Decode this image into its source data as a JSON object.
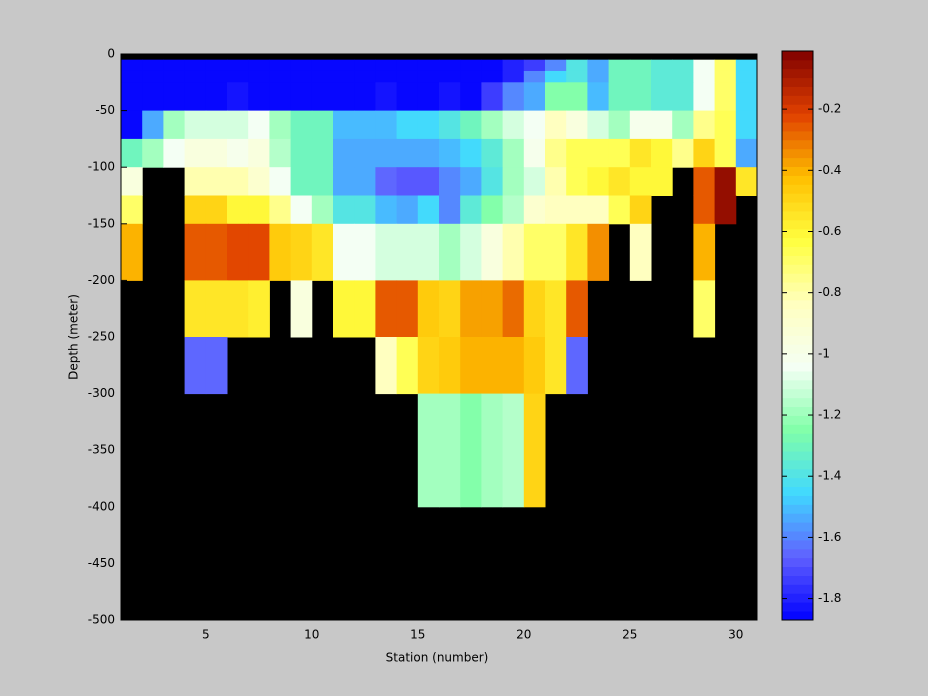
{
  "chart_data": {
    "type": "heatmap",
    "xlabel": "Station (number)",
    "ylabel": "Depth (meter)",
    "x_edges": [
      1,
      2,
      3,
      4,
      5,
      6,
      7,
      8,
      9,
      10,
      11,
      12,
      13,
      14,
      15,
      16,
      17,
      18,
      19,
      20,
      21,
      22,
      23,
      24,
      25,
      26,
      27,
      28,
      29,
      30,
      31
    ],
    "y_edges": [
      -5,
      -15,
      -25,
      -50,
      -75,
      -100,
      -125,
      -150,
      -200,
      -250,
      -300,
      -400
    ],
    "values": [
      [
        -1.85,
        -1.85,
        -1.85,
        -1.85,
        -1.85,
        -1.85,
        -1.85,
        -1.85,
        -1.85,
        -1.85,
        -1.85,
        -1.85,
        -1.85,
        -1.85,
        -1.85,
        -1.85,
        -1.85,
        -1.85,
        -1.8,
        -1.75,
        -1.6,
        -1.4,
        -1.55,
        -1.3,
        -1.3,
        -1.35,
        -1.35,
        -1.05,
        -0.7,
        -1.45
      ],
      [
        -1.85,
        -1.85,
        -1.85,
        -1.85,
        -1.85,
        -1.85,
        -1.85,
        -1.85,
        -1.85,
        -1.85,
        -1.85,
        -1.85,
        -1.85,
        -1.85,
        -1.85,
        -1.85,
        -1.85,
        -1.85,
        -1.8,
        -1.6,
        -1.45,
        -1.4,
        -1.55,
        -1.3,
        -1.3,
        -1.35,
        -1.35,
        -1.05,
        -0.7,
        -1.45
      ],
      [
        -1.85,
        -1.85,
        -1.85,
        -1.85,
        -1.85,
        -1.82,
        -1.85,
        -1.85,
        -1.85,
        -1.85,
        -1.85,
        -1.85,
        -1.82,
        -1.85,
        -1.85,
        -1.82,
        -1.85,
        -1.75,
        -1.6,
        -1.55,
        -1.25,
        -1.25,
        -1.5,
        -1.3,
        -1.3,
        -1.35,
        -1.35,
        -1.05,
        -0.7,
        -1.45
      ],
      [
        -1.85,
        -1.55,
        -1.2,
        -1.1,
        -1.1,
        -1.1,
        -1.05,
        -1.2,
        -1.3,
        -1.3,
        -1.5,
        -1.5,
        -1.5,
        -1.45,
        -1.45,
        -1.4,
        -1.3,
        -1.2,
        -1.1,
        -1.05,
        -0.85,
        -0.95,
        -1.1,
        -1.2,
        -1.0,
        -1.0,
        -1.2,
        -0.75,
        -0.65,
        -1.45
      ],
      [
        -1.3,
        -1.2,
        -1.05,
        -0.95,
        -0.95,
        -1.0,
        -0.95,
        -1.15,
        -1.3,
        -1.3,
        -1.55,
        -1.55,
        -1.55,
        -1.55,
        -1.55,
        -1.5,
        -1.45,
        -1.35,
        -1.2,
        -1.0,
        -0.75,
        -0.65,
        -0.65,
        -0.65,
        -0.55,
        -0.6,
        -0.75,
        -0.5,
        -0.65,
        -1.55
      ],
      [
        -0.95,
        null,
        null,
        -0.8,
        -0.8,
        -0.8,
        -0.9,
        -1.05,
        -1.3,
        -1.3,
        -1.55,
        -1.55,
        -1.65,
        -1.68,
        -1.68,
        -1.6,
        -1.55,
        -1.4,
        -1.2,
        -1.1,
        -0.8,
        -0.65,
        -0.6,
        -0.55,
        -0.6,
        -0.6,
        null,
        -0.25,
        -0.05,
        -0.55
      ],
      [
        -0.7,
        null,
        null,
        -0.5,
        -0.5,
        -0.6,
        -0.6,
        -0.75,
        -1.05,
        -1.2,
        -1.4,
        -1.4,
        -1.5,
        -1.55,
        -1.45,
        -1.6,
        -1.35,
        -1.25,
        -1.15,
        -0.9,
        -0.85,
        -0.85,
        -0.85,
        -0.65,
        -0.5,
        null,
        null,
        -0.25,
        -0.05,
        null
      ],
      [
        -0.4,
        null,
        null,
        -0.25,
        -0.25,
        -0.22,
        -0.22,
        -0.45,
        -0.5,
        -0.55,
        -1.05,
        -1.05,
        -1.1,
        -1.1,
        -1.1,
        -1.2,
        -1.1,
        -0.95,
        -0.8,
        -0.7,
        -0.7,
        -0.55,
        -0.35,
        null,
        -0.85,
        null,
        null,
        -0.4,
        null,
        null
      ],
      [
        null,
        null,
        null,
        -0.55,
        -0.55,
        -0.55,
        -0.58,
        null,
        -0.95,
        null,
        -0.6,
        -0.6,
        -0.25,
        -0.25,
        -0.45,
        -0.5,
        -0.38,
        -0.38,
        -0.3,
        -0.5,
        -0.55,
        -0.25,
        null,
        null,
        null,
        null,
        null,
        -0.7,
        null,
        null
      ],
      [
        null,
        null,
        null,
        -1.65,
        -1.65,
        null,
        null,
        null,
        null,
        null,
        null,
        null,
        -0.85,
        -0.65,
        -0.5,
        -0.45,
        -0.4,
        -0.4,
        -0.4,
        -0.45,
        -0.55,
        -1.65,
        null,
        null,
        null,
        null,
        null,
        null,
        null,
        null
      ],
      [
        null,
        null,
        null,
        null,
        null,
        null,
        null,
        null,
        null,
        null,
        null,
        null,
        null,
        null,
        -1.2,
        -1.2,
        -1.25,
        -1.2,
        -1.15,
        -0.5,
        null,
        null,
        null,
        null,
        null,
        null,
        null,
        null,
        null,
        null
      ]
    ],
    "xlim": [
      1,
      31
    ],
    "ylim": [
      -500,
      0
    ],
    "xticks": [
      5,
      10,
      15,
      20,
      25,
      30
    ],
    "yticks": [
      0,
      -50,
      -100,
      -150,
      -200,
      -250,
      -300,
      -350,
      -400,
      -450,
      -500
    ],
    "background": "#000000",
    "colorbar": {
      "clim": [
        -1.87,
        -0.01
      ],
      "ticks": [
        -0.2,
        -0.4,
        -0.6,
        -0.8,
        -1,
        -1.2,
        -1.4,
        -1.6,
        -1.8
      ],
      "levels": 64,
      "colormap": [
        "#0000ff",
        "#6060ff",
        "#40d8ff",
        "#80ffa8",
        "#f4fff4",
        "#ffffc0",
        "#ffff40",
        "#ffc000",
        "#e04000",
        "#800000"
      ]
    }
  }
}
